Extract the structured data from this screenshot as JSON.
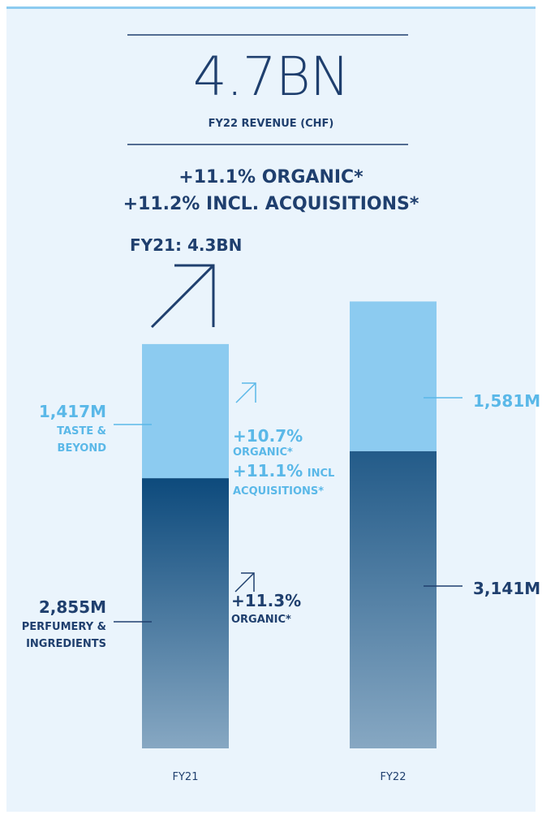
{
  "chart_data": {
    "type": "bar",
    "stacked": true,
    "title": "4.7BN",
    "subtitle": "FY22 REVENUE (CHF)",
    "highlights": [
      "+11.1% ORGANIC*",
      "+11.2% INCL. ACQUISITIONS*"
    ],
    "previous": "FY21: 4.3BN",
    "categories": [
      "FY21",
      "FY22"
    ],
    "series": [
      {
        "name": "PERFUMERY & INGREDIENTS",
        "color": "#0d4a7c",
        "values": [
          2855,
          3141
        ],
        "value_labels": [
          "2,855M",
          "3,141M"
        ]
      },
      {
        "name": "TASTE & BEYOND",
        "color": "#8ccbf0",
        "values": [
          1417,
          1581
        ],
        "value_labels": [
          "1,417M",
          "1,581M"
        ]
      }
    ],
    "annotations": [
      "+10.7%",
      "ORGANIC*",
      "+11.1%",
      "INCL",
      "ACQUISITIONS*",
      "+11.3%",
      "ORGANIC*"
    ]
  }
}
